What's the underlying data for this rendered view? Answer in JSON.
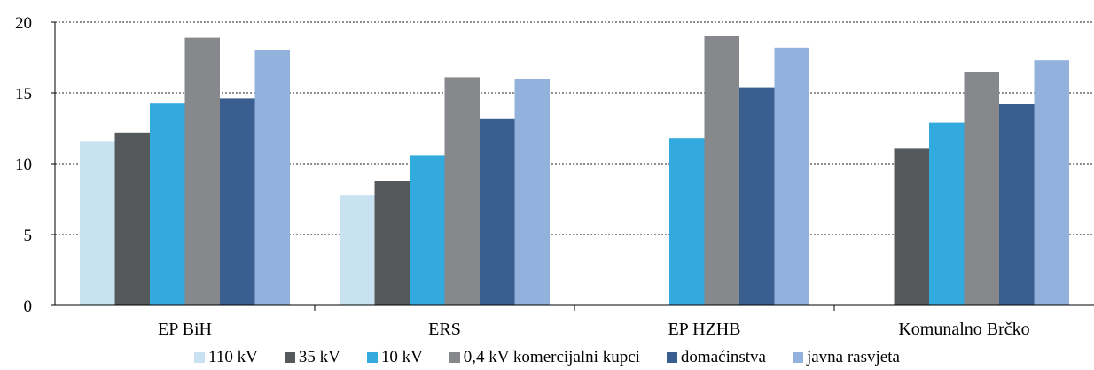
{
  "chart_data": {
    "type": "bar",
    "categories": [
      "EP BiH",
      "ERS",
      "EP HZHB",
      "Komunalno Brčko"
    ],
    "series": [
      {
        "name": "110 kV",
        "color": "#c9e2f2",
        "values": [
          11.6,
          7.8,
          null,
          null
        ]
      },
      {
        "name": "35 kV",
        "color": "#55595c",
        "values": [
          12.2,
          8.8,
          null,
          11.1
        ]
      },
      {
        "name": "10 kV",
        "color": "#33aadd",
        "values": [
          14.3,
          10.6,
          11.8,
          12.9
        ]
      },
      {
        "name": "0,4 kV komercijalni kupci",
        "color": "#86888b",
        "values": [
          18.9,
          16.1,
          19.0,
          16.5
        ]
      },
      {
        "name": "domaćinstva",
        "color": "#3b5e90",
        "values": [
          14.6,
          13.2,
          15.4,
          14.2
        ]
      },
      {
        "name": "javna rasvjeta",
        "color": "#93b1dd",
        "values": [
          18.0,
          16.0,
          18.2,
          17.3
        ]
      }
    ],
    "y_ticks": [
      "0",
      "5",
      "10",
      "15",
      "20"
    ],
    "ylim": [
      0,
      20
    ],
    "grid": true,
    "legend_position": "bottom"
  }
}
